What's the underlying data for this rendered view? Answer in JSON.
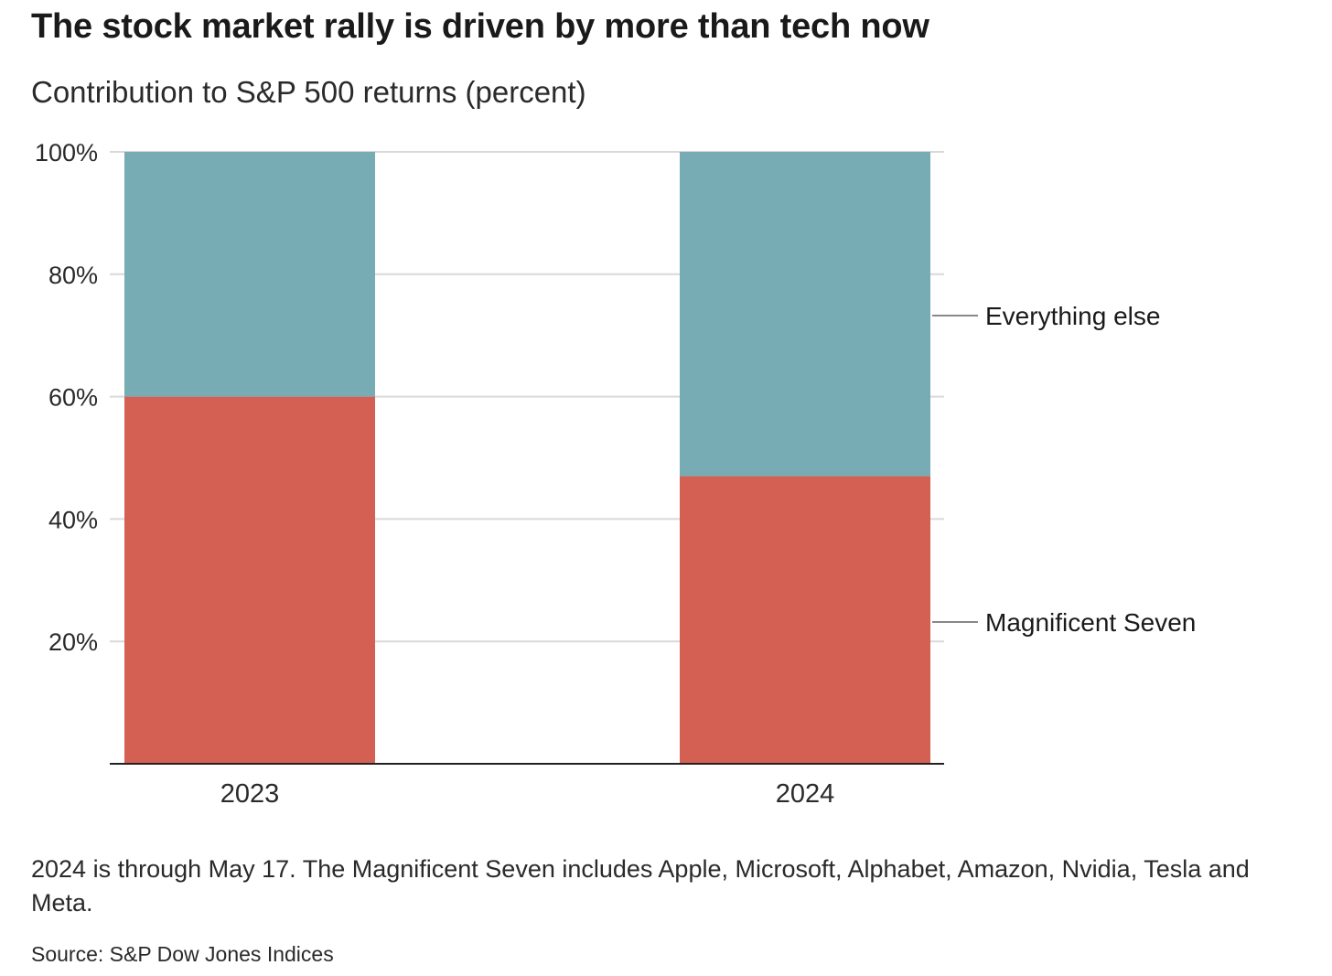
{
  "chart_data": {
    "type": "bar",
    "stacked": true,
    "title": "The stock market rally is driven by more than tech now",
    "subtitle": "Contribution to S&P 500 returns (percent)",
    "categories": [
      "2023",
      "2024"
    ],
    "series": [
      {
        "name": "Magnificent Seven",
        "values": [
          60,
          47
        ],
        "color": "#d36052"
      },
      {
        "name": "Everything else",
        "values": [
          40,
          53
        ],
        "color": "#77acb5"
      }
    ],
    "ylim": [
      0,
      100
    ],
    "yticks": [
      20,
      40,
      60,
      80,
      100
    ],
    "ytick_labels": [
      "20%",
      "40%",
      "60%",
      "80%",
      "100%"
    ],
    "grid": true,
    "legend": "right, inline labels"
  },
  "note": "2024 is through May 17. The Magnificent Seven includes Apple, Microsoft, Alphabet, Amazon, Nvidia, Tesla and Meta.",
  "source": "Source: S&P Dow Jones Indices"
}
